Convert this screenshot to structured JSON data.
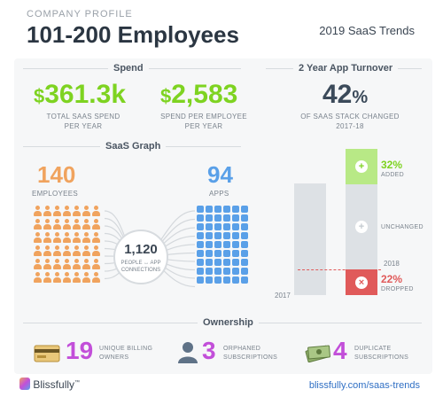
{
  "header": {
    "kicker": "COMPANY PROFILE",
    "title": "101-200 Employees",
    "trend": "2019 SaaS Trends"
  },
  "spend": {
    "section": "Spend",
    "total": {
      "symbol": "$",
      "value": "361.3k",
      "caption_line1": "TOTAL SAAS SPEND",
      "caption_line2": "PER YEAR"
    },
    "per_employee": {
      "symbol": "$",
      "value": "2,583",
      "caption_line1": "SPEND PER EMPLOYEE",
      "caption_line2": "PER YEAR"
    }
  },
  "turnover": {
    "section": "2 Year App Turnover",
    "percent": "42",
    "percent_sign": "%",
    "caption_line1": "OF SAAS STACK CHANGED",
    "caption_line2": "2017-18",
    "year_2017": "2017",
    "year_2018": "2018",
    "added_pct": "32%",
    "added_label": "ADDED",
    "unchanged_label": "UNCHANGED",
    "dropped_pct": "22%",
    "dropped_label": "DROPPED",
    "colors": {
      "added": "#b8e986",
      "unchanged": "#dde1e5",
      "dropped": "#e05a5a"
    }
  },
  "saas_graph": {
    "section": "SaaS Graph",
    "employees": "140",
    "employees_label": "EMPLOYEES",
    "apps": "94",
    "apps_label": "APPS",
    "connections": "1,120",
    "connections_line1": "PEOPLE ↔ APP",
    "connections_line2": "CONNECTIONS"
  },
  "ownership": {
    "section": "Ownership",
    "billing": {
      "value": "19",
      "line1": "UNIQUE BILLING",
      "line2": "OWNERS",
      "icon": "credit-card-icon"
    },
    "orphaned": {
      "value": "3",
      "line1": "ORPHANED",
      "line2": "SUBSCRIPTIONS",
      "icon": "person-silhouette-icon"
    },
    "duplicate": {
      "value": "4",
      "line1": "DUPLICATE",
      "line2": "SUBSCRIPTIONS",
      "icon": "money-stack-icon"
    }
  },
  "footer": {
    "brand": "Blissfully",
    "trademark": "™",
    "link": "blissfully.com/saas-trends"
  },
  "colors": {
    "green": "#7ed321",
    "orange": "#f0a35e",
    "blue": "#5aa0e8",
    "purple": "#c24fd9",
    "link": "#2f6fc4"
  }
}
